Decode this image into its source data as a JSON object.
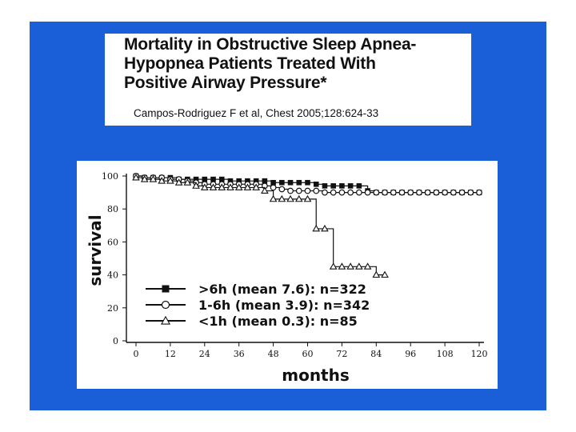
{
  "slide": {
    "title_lines": [
      "Mortality in Obstructive Sleep Apnea-",
      "Hypopnea Patients Treated With",
      "Positive Airway Pressure*"
    ],
    "citation": "Campos-Rodriguez F et al, Chest 2005;128:624-33"
  },
  "colors": {
    "slide_bg": "#1a5fd8",
    "panel_bg": "#ffffff",
    "ink": "#111111"
  },
  "chart_data": {
    "type": "line",
    "title": "",
    "xlabel": "months",
    "ylabel": "survival",
    "xlim": [
      0,
      120
    ],
    "ylim": [
      0,
      100
    ],
    "x_ticks": [
      "0",
      "12",
      "24",
      "36",
      "48",
      "60",
      "72",
      "84",
      "96",
      "108",
      "120"
    ],
    "y_ticks": [
      "0",
      "20",
      "40",
      "60",
      "80",
      "100"
    ],
    "series": [
      {
        "name": ">6h (mean 7.6): n=322",
        "marker": "square",
        "x": [
          0,
          3,
          6,
          9,
          12,
          15,
          18,
          21,
          24,
          27,
          30,
          33,
          36,
          39,
          42,
          45,
          48,
          51,
          54,
          57,
          60,
          63,
          66,
          69,
          72,
          75,
          78,
          81,
          84,
          87,
          90,
          93,
          96,
          99,
          102,
          105,
          108,
          111,
          114,
          117,
          120
        ],
        "y": [
          100,
          99,
          99,
          99,
          99,
          98,
          98,
          98,
          98,
          98,
          98,
          97,
          97,
          97,
          97,
          97,
          96,
          96,
          96,
          96,
          96,
          95,
          94,
          94,
          94,
          94,
          94,
          91,
          90,
          90,
          90,
          90,
          90,
          90,
          90,
          90,
          90,
          90,
          90,
          90,
          90
        ]
      },
      {
        "name": "1-6h (mean 3.9): n=342",
        "marker": "circle",
        "x": [
          0,
          3,
          6,
          9,
          12,
          15,
          18,
          21,
          24,
          27,
          30,
          33,
          36,
          39,
          42,
          45,
          48,
          51,
          54,
          57,
          60,
          63,
          66,
          69,
          72,
          75,
          78,
          81,
          84,
          87,
          90,
          93,
          96,
          99,
          102,
          105,
          108,
          111,
          114,
          117,
          120
        ],
        "y": [
          100,
          99,
          99,
          99,
          98,
          98,
          97,
          96,
          95,
          95,
          95,
          95,
          95,
          95,
          95,
          94,
          93,
          92,
          91,
          91,
          91,
          91,
          90,
          90,
          90,
          90,
          90,
          90,
          90,
          90,
          90,
          90,
          90,
          90,
          90,
          90,
          90,
          90,
          90,
          90,
          90
        ]
      },
      {
        "name": "<1h (mean 0.3): n=85",
        "marker": "triangle",
        "x": [
          0,
          3,
          6,
          9,
          12,
          15,
          18,
          21,
          24,
          27,
          30,
          33,
          36,
          39,
          42,
          45,
          48,
          51,
          54,
          57,
          60,
          63,
          66,
          69,
          72,
          75,
          78,
          81,
          84,
          87
        ],
        "y": [
          99,
          98,
          98,
          97,
          97,
          96,
          96,
          94,
          93,
          93,
          93,
          93,
          93,
          93,
          93,
          91,
          86,
          86,
          86,
          86,
          86,
          68,
          68,
          45,
          45,
          45,
          45,
          45,
          40,
          40
        ]
      }
    ],
    "legend_position": "bottom-left"
  }
}
